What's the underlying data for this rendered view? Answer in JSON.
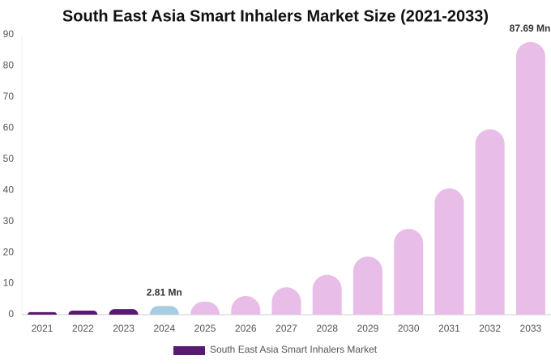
{
  "chart_data": {
    "type": "bar",
    "title": "South East Asia Smart Inhalers Market Size (2021-2033)",
    "categories": [
      "2021",
      "2022",
      "2023",
      "2024",
      "2025",
      "2026",
      "2027",
      "2028",
      "2029",
      "2030",
      "2031",
      "2032",
      "2033"
    ],
    "series": [
      {
        "name": "South East Asia Smart Inhalers Market",
        "color": "#5a1a73",
        "colors": [
          "#5a1a73",
          "#5a1a73",
          "#5a1a73",
          "#a8cce0",
          "#e8bde8",
          "#e8bde8",
          "#e8bde8",
          "#e8bde8",
          "#e8bde8",
          "#e8bde8",
          "#e8bde8",
          "#e8bde8",
          "#e8bde8"
        ],
        "values": [
          0.8,
          1.3,
          1.8,
          2.81,
          4.2,
          6.0,
          8.8,
          12.8,
          18.7,
          27.6,
          40.6,
          59.6,
          87.69
        ],
        "value_labels": [
          null,
          null,
          null,
          "2.81 Mn",
          null,
          null,
          null,
          null,
          null,
          null,
          null,
          null,
          "87.69 Mn"
        ]
      }
    ],
    "ylim": [
      0,
      90
    ],
    "yticks": [
      0,
      10,
      20,
      30,
      40,
      50,
      60,
      70,
      80,
      90
    ],
    "grid": false
  }
}
